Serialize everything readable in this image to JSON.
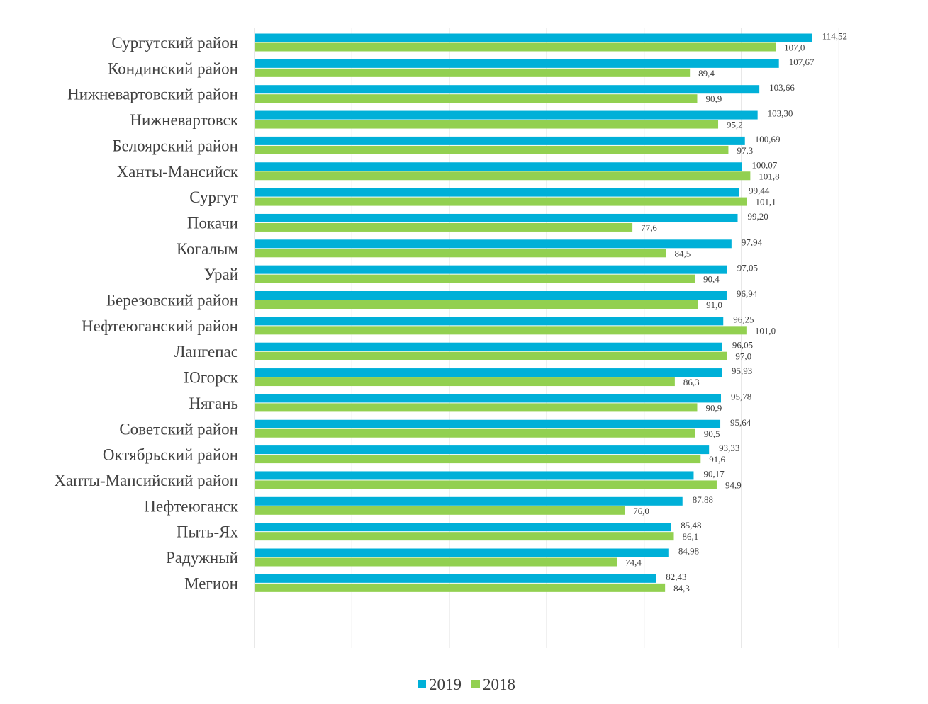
{
  "chart_data": {
    "type": "bar",
    "orientation": "horizontal",
    "title": "",
    "xlabel": "",
    "ylabel": "",
    "xlim": [
      0,
      120
    ],
    "grid": true,
    "legend_position": "bottom",
    "categories": [
      "Сургутский район",
      "Кондинский район",
      "Нижневартовский район",
      "Нижневартовск",
      "Белоярский район",
      "Ханты-Мансийск",
      "Сургут",
      "Покачи",
      "Когалым",
      "Урай",
      "Березовский район",
      "Нефтеюганский район",
      "Лангепас",
      "Югорск",
      "Нягань",
      "Советский район",
      "Октябрьский район",
      "Ханты-Мансийский район",
      "Нефтеюганск",
      "Пыть-Ях",
      "Радужный",
      "Мегион"
    ],
    "series": [
      {
        "name": "2019",
        "color": "#00b0d8",
        "values": [
          114.52,
          107.67,
          103.66,
          103.3,
          100.69,
          100.07,
          99.44,
          99.2,
          97.94,
          97.05,
          96.94,
          96.25,
          96.05,
          95.93,
          95.78,
          95.64,
          93.33,
          90.17,
          87.88,
          85.48,
          84.98,
          82.43
        ],
        "labels": [
          "114,52",
          "107,67",
          "103,66",
          "103,30",
          "100,69",
          "100,07",
          "99,44",
          "99,20",
          "97,94",
          "97,05",
          "96,94",
          "96,25",
          "96,05",
          "95,93",
          "95,78",
          "95,64",
          "93,33",
          "90,17",
          "87,88",
          "85,48",
          "84,98",
          "82,43"
        ]
      },
      {
        "name": "2018",
        "color": "#92d050",
        "values": [
          107.0,
          89.4,
          90.9,
          95.2,
          97.3,
          101.8,
          101.1,
          77.6,
          84.5,
          90.4,
          91.0,
          101.0,
          97.0,
          86.3,
          90.9,
          90.5,
          91.6,
          94.9,
          76.0,
          86.1,
          74.4,
          84.3
        ],
        "labels": [
          "107,0",
          "89,4",
          "90,9",
          "95,2",
          "97,3",
          "101,8",
          "101,1",
          "77,6",
          "84,5",
          "90,4",
          "91,0",
          "101,0",
          "97,0",
          "86,3",
          "90,9",
          "90,5",
          "91,6",
          "94,9",
          "76,0",
          "86,1",
          "74,4",
          "84,3"
        ]
      }
    ]
  }
}
